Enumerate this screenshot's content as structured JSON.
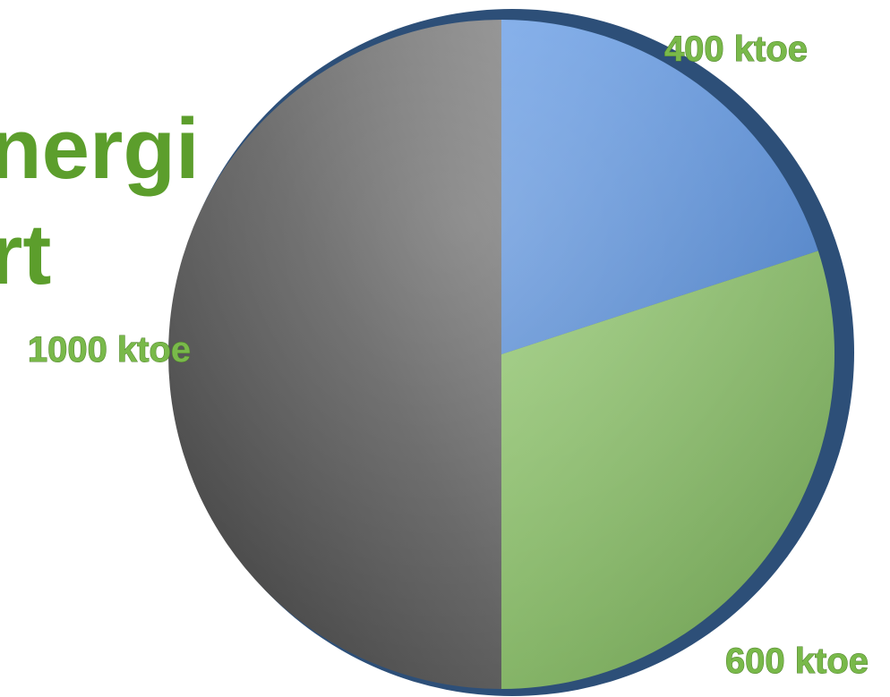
{
  "title_fragment": {
    "line1": "nergi",
    "line2": "rt"
  },
  "chart_data": {
    "type": "pie",
    "title": "",
    "unit": "ktoe",
    "slices": [
      {
        "label": "400 ktoe",
        "value": 400,
        "color": "#5b8fd6"
      },
      {
        "label": "600 ktoe",
        "value": 600,
        "color": "#84b466"
      },
      {
        "label": "1000 ktoe",
        "value": 1000,
        "color": "#5a5a5a"
      }
    ],
    "start_angle_deg": 0,
    "direction": "clockwise"
  }
}
